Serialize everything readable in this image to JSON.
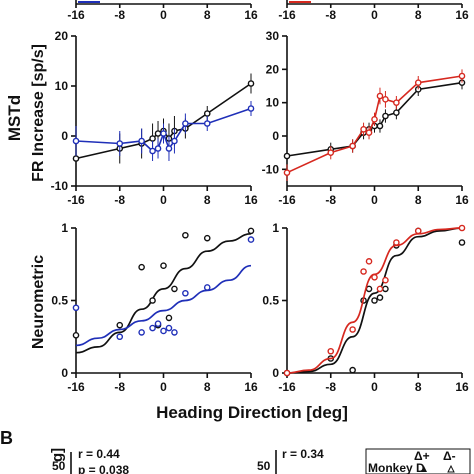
{
  "figure": {
    "row_label_top": "MSTd",
    "panel_letter": "B",
    "xlabel_shared": "Heading Direction [deg]"
  },
  "colors": {
    "black": "#111111",
    "blue": "#1f2fb8",
    "red": "#d6281f"
  },
  "chart_data": [
    {
      "type": "line",
      "panel": "top-left-partial",
      "xticks": [
        -16,
        -8,
        0,
        8,
        16
      ],
      "xtick_labels": [
        "-16",
        "-8",
        "0",
        "8",
        "16"
      ],
      "xlim": [
        -16,
        16
      ],
      "series": [
        {
          "color": "blue"
        }
      ]
    },
    {
      "type": "line",
      "panel": "top-right-partial",
      "xticks": [
        -16,
        -8,
        0,
        8,
        16
      ],
      "xtick_labels": [
        "-16",
        "-8",
        "0",
        "8",
        "16"
      ],
      "xlim": [
        -16,
        16
      ],
      "series": [
        {
          "color": "red"
        }
      ]
    },
    {
      "type": "line",
      "panel": "mid-left",
      "ylabel": "FR Increase [sp/s]",
      "xlim": [
        -16,
        16
      ],
      "ylim": [
        -10,
        20
      ],
      "xticks": [
        -16,
        -8,
        0,
        8,
        16
      ],
      "xtick_labels": [
        "-16",
        "-8",
        "0",
        "8",
        "16"
      ],
      "yticks": [
        -10,
        0,
        10,
        20
      ],
      "ytick_labels": [
        "-10",
        "0",
        "10",
        "20"
      ],
      "x": [
        -16,
        -8,
        -4,
        -2,
        -1,
        0,
        1,
        2,
        4,
        8,
        16
      ],
      "series": [
        {
          "color": "black",
          "y": [
            -4.5,
            -2.5,
            -1.5,
            -0.5,
            0.5,
            1.0,
            -0.5,
            1.0,
            1.5,
            4.5,
            10.5
          ],
          "err": [
            5,
            3,
            3,
            3,
            2.5,
            2.5,
            3,
            3,
            2,
            1.5,
            2
          ]
        },
        {
          "color": "blue",
          "y": [
            -1.0,
            -1.5,
            -1.0,
            -3.0,
            -2.5,
            0.5,
            -2.5,
            -1.0,
            2.5,
            2.5,
            5.5
          ],
          "err": [
            3,
            2.5,
            2.5,
            2,
            2,
            2,
            2.5,
            2.5,
            2,
            1.5,
            1.5
          ]
        }
      ]
    },
    {
      "type": "line",
      "panel": "mid-right",
      "xlim": [
        -16,
        16
      ],
      "ylim": [
        -15,
        30
      ],
      "xticks": [
        -16,
        -8,
        0,
        8,
        16
      ],
      "xtick_labels": [
        "-16",
        "-8",
        "0",
        "8",
        "16"
      ],
      "yticks": [
        -10,
        0,
        10,
        20,
        30
      ],
      "ytick_labels": [
        "-10",
        "0",
        "10",
        "20",
        "30"
      ],
      "x": [
        -16,
        -8,
        -4,
        -2,
        -1,
        0,
        1,
        2,
        4,
        8,
        16
      ],
      "series": [
        {
          "color": "black",
          "y": [
            -6,
            -4,
            -3,
            1,
            2,
            3,
            3,
            6,
            7,
            14,
            16
          ],
          "err": [
            2,
            2,
            2,
            2,
            2,
            2,
            2,
            2,
            2,
            2,
            2
          ]
        },
        {
          "color": "red",
          "y": [
            -11,
            -5,
            -3,
            2,
            1,
            5,
            12,
            11,
            10,
            16,
            18
          ],
          "err": [
            2.5,
            2,
            2,
            2,
            2,
            2,
            2.5,
            2.5,
            2,
            2,
            2
          ]
        }
      ]
    },
    {
      "type": "scatter",
      "panel": "bottom-left",
      "ylabel": "Neurometric",
      "xlim": [
        -16,
        16
      ],
      "ylim": [
        0,
        1
      ],
      "xticks": [
        -16,
        -8,
        0,
        8,
        16
      ],
      "xtick_labels": [
        "-16",
        "-8",
        "0",
        "8",
        "16"
      ],
      "yticks": [
        0,
        0.5,
        1
      ],
      "ytick_labels": [
        "0",
        "0.5",
        "1"
      ],
      "series": [
        {
          "color": "black",
          "points": [
            [
              -16,
              0.26
            ],
            [
              -8,
              0.33
            ],
            [
              -4,
              0.73
            ],
            [
              -2,
              0.5
            ],
            [
              -1,
              0.33
            ],
            [
              0,
              0.74
            ],
            [
              1,
              0.38
            ],
            [
              2,
              0.58
            ],
            [
              4,
              0.95
            ],
            [
              8,
              0.93
            ],
            [
              16,
              0.98
            ]
          ],
          "fit": [
            [
              -16,
              0.14
            ],
            [
              -12,
              0.18
            ],
            [
              -8,
              0.28
            ],
            [
              -4,
              0.44
            ],
            [
              0,
              0.58
            ],
            [
              4,
              0.72
            ],
            [
              8,
              0.84
            ],
            [
              12,
              0.91
            ],
            [
              16,
              0.96
            ]
          ]
        },
        {
          "color": "blue",
          "points": [
            [
              -16,
              0.45
            ],
            [
              -8,
              0.25
            ],
            [
              -4,
              0.28
            ],
            [
              -2,
              0.31
            ],
            [
              -1,
              0.34
            ],
            [
              0,
              0.29
            ],
            [
              1,
              0.31
            ],
            [
              2,
              0.28
            ],
            [
              4,
              0.55
            ],
            [
              8,
              0.59
            ],
            [
              16,
              0.92
            ]
          ],
          "fit": [
            [
              -16,
              0.19
            ],
            [
              -12,
              0.24
            ],
            [
              -8,
              0.3
            ],
            [
              -4,
              0.36
            ],
            [
              0,
              0.43
            ],
            [
              4,
              0.5
            ],
            [
              8,
              0.57
            ],
            [
              12,
              0.64
            ],
            [
              16,
              0.74
            ]
          ]
        }
      ]
    },
    {
      "type": "scatter",
      "panel": "bottom-right",
      "xlim": [
        -16,
        16
      ],
      "ylim": [
        0,
        1
      ],
      "xticks": [
        -16,
        -8,
        0,
        8,
        16
      ],
      "xtick_labels": [
        "-16",
        "-8",
        "0",
        "8",
        "16"
      ],
      "yticks": [
        0,
        0.5,
        1
      ],
      "ytick_labels": [
        "0",
        "0.5",
        "1"
      ],
      "series": [
        {
          "color": "black",
          "points": [
            [
              -16,
              0
            ],
            [
              -8,
              0.1
            ],
            [
              -4,
              0.02
            ],
            [
              -2,
              0.5
            ],
            [
              -1,
              0.58
            ],
            [
              0,
              0.5
            ],
            [
              1,
              0.52
            ],
            [
              2,
              0.58
            ],
            [
              4,
              0.88
            ],
            [
              8,
              0.98
            ],
            [
              16,
              0.9
            ]
          ],
          "fit": [
            [
              -16,
              0.0
            ],
            [
              -12,
              0.01
            ],
            [
              -8,
              0.06
            ],
            [
              -4,
              0.25
            ],
            [
              0,
              0.55
            ],
            [
              4,
              0.81
            ],
            [
              8,
              0.94
            ],
            [
              12,
              0.98
            ],
            [
              16,
              1.0
            ]
          ]
        },
        {
          "color": "red",
          "points": [
            [
              -16,
              0
            ],
            [
              -8,
              0.15
            ],
            [
              -4,
              0.3
            ],
            [
              -2,
              0.7
            ],
            [
              -1,
              0.77
            ],
            [
              0,
              0.66
            ],
            [
              1,
              0.58
            ],
            [
              2,
              0.64
            ],
            [
              4,
              0.9
            ],
            [
              8,
              0.98
            ],
            [
              16,
              1.0
            ]
          ],
          "fit": [
            [
              -16,
              0.0
            ],
            [
              -12,
              0.02
            ],
            [
              -8,
              0.1
            ],
            [
              -4,
              0.35
            ],
            [
              0,
              0.68
            ],
            [
              4,
              0.88
            ],
            [
              8,
              0.96
            ],
            [
              12,
              0.99
            ],
            [
              16,
              1.0
            ]
          ]
        }
      ]
    },
    {
      "type": "scatter",
      "panel": "B-left-partial",
      "ytick_labels": [
        "50"
      ],
      "annotations": [
        "r = 0.44",
        "p = 0.038"
      ]
    },
    {
      "type": "scatter",
      "panel": "B-right-partial",
      "ytick_labels": [
        "50"
      ],
      "annotations": [
        "r = 0.34"
      ],
      "legend": {
        "title": "Monkey D",
        "entries": [
          "Δ+",
          "Δ-"
        ]
      }
    }
  ]
}
